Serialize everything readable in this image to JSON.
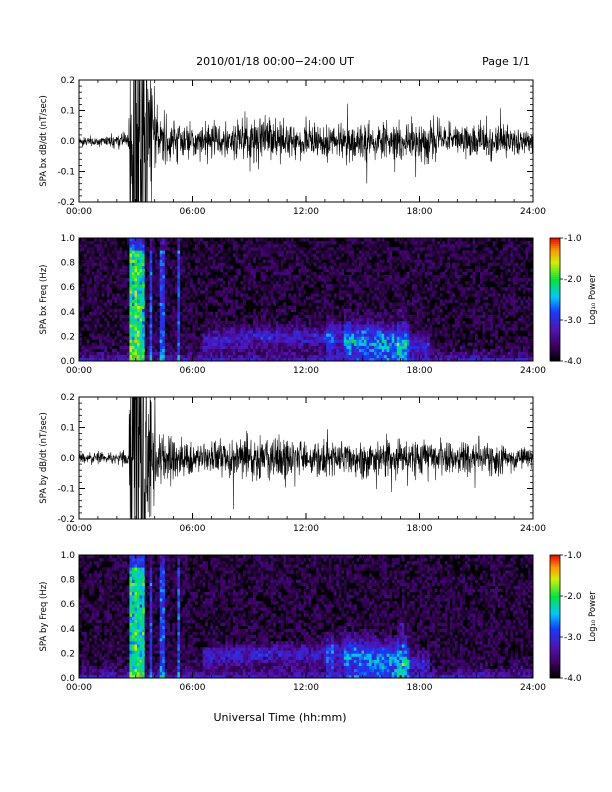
{
  "header": {
    "title": "2010/01/18  00:00−24:00 UT",
    "page": "Page 1/1"
  },
  "xlabel": "Universal Time (hh:mm)",
  "colorbar_label": "Log₁₀ Power",
  "colorbar_ticks": [
    "-1.0",
    "-2.0",
    "-3.0",
    "-4.0"
  ],
  "chart_data": [
    {
      "type": "line",
      "title": "",
      "ylabel": "SPA bx dB/dt (nT/sec)",
      "xlim": [
        0,
        24
      ],
      "ylim": [
        -0.2,
        0.2
      ],
      "x_ticks": [
        "00:00",
        "06:00",
        "12:00",
        "18:00",
        "24:00"
      ],
      "y_ticks": [
        "0.2",
        "0.1",
        "0.0",
        "-0.1",
        "-0.2"
      ],
      "amplitude_envelope_x": [
        0,
        2.0,
        2.6,
        2.7,
        3.2,
        3.8,
        4.3,
        5.0,
        6.0,
        8.0,
        9.0,
        12.0,
        14.0,
        15.0,
        16.0,
        17.0,
        18.0,
        20.0,
        22.0,
        24.0
      ],
      "amplitude_envelope_y": [
        0.015,
        0.02,
        0.03,
        0.2,
        0.2,
        0.18,
        0.08,
        0.06,
        0.05,
        0.05,
        0.07,
        0.05,
        0.05,
        0.06,
        0.05,
        0.06,
        0.06,
        0.05,
        0.05,
        0.03
      ]
    },
    {
      "type": "heatmap",
      "title": "",
      "ylabel": "SPA bx Freq (Hz)",
      "xlim": [
        0,
        24
      ],
      "ylim": [
        0.0,
        1.0
      ],
      "x_ticks": [
        "00:00",
        "06:00",
        "12:00",
        "18:00",
        "24:00"
      ],
      "y_ticks": [
        "1.0",
        "0.8",
        "0.6",
        "0.4",
        "0.2",
        "0.0"
      ],
      "colorbar_range": [
        -4.0,
        -1.0
      ]
    },
    {
      "type": "line",
      "title": "",
      "ylabel": "SPA by dB/dt (nT/sec)",
      "xlim": [
        0,
        24
      ],
      "ylim": [
        -0.2,
        0.2
      ],
      "x_ticks": [
        "00:00",
        "06:00",
        "12:00",
        "18:00",
        "24:00"
      ],
      "y_ticks": [
        "0.2",
        "0.1",
        "0.0",
        "-0.1",
        "-0.2"
      ],
      "amplitude_envelope_x": [
        0,
        2.0,
        2.6,
        2.7,
        3.2,
        3.8,
        4.3,
        5.0,
        6.0,
        8.0,
        9.0,
        12.0,
        14.0,
        15.0,
        16.0,
        17.0,
        18.0,
        20.0,
        22.0,
        24.0
      ],
      "amplitude_envelope_y": [
        0.015,
        0.02,
        0.03,
        0.2,
        0.2,
        0.18,
        0.08,
        0.06,
        0.05,
        0.05,
        0.07,
        0.05,
        0.05,
        0.06,
        0.05,
        0.06,
        0.07,
        0.05,
        0.05,
        0.03
      ]
    },
    {
      "type": "heatmap",
      "title": "",
      "ylabel": "SPA by Freq (Hz)",
      "xlim": [
        0,
        24
      ],
      "ylim": [
        0.0,
        1.0
      ],
      "x_ticks": [
        "00:00",
        "06:00",
        "12:00",
        "18:00",
        "24:00"
      ],
      "y_ticks": [
        "1.0",
        "0.8",
        "0.6",
        "0.4",
        "0.2",
        "0.0"
      ],
      "colorbar_range": [
        -4.0,
        -1.0
      ]
    }
  ]
}
